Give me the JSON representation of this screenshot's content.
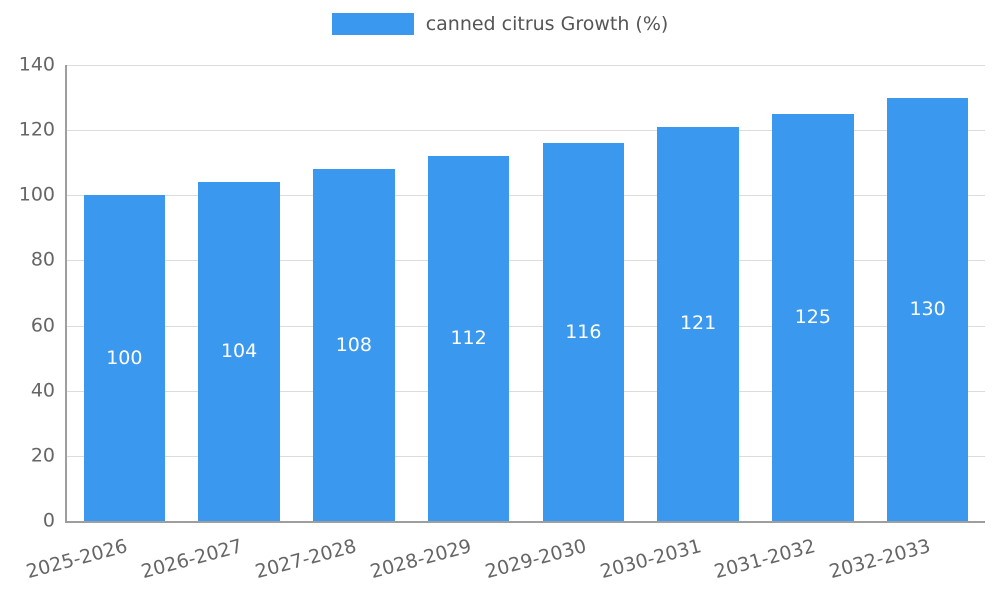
{
  "chart_data": {
    "type": "bar",
    "title": "",
    "series_name": "canned citrus Growth (%)",
    "categories": [
      "2025-2026",
      "2026-2027",
      "2027-2028",
      "2028-2029",
      "2029-2030",
      "2030-2031",
      "2031-2032",
      "2032-2033"
    ],
    "values": [
      100,
      104,
      108,
      112,
      116,
      121,
      125,
      130
    ],
    "xlabel": "",
    "ylabel": "",
    "ylim": [
      0,
      140
    ],
    "yticks": [
      0,
      20,
      40,
      60,
      80,
      100,
      120,
      140
    ],
    "grid": true,
    "legend_position": "top",
    "bar_color": "#3a99ee",
    "value_label_color": "#ffffff",
    "grid_color": "#dcdcdc",
    "axis_color": "#9e9e9e",
    "tick_label_color": "#666666",
    "legend_text_color": "#555555"
  }
}
